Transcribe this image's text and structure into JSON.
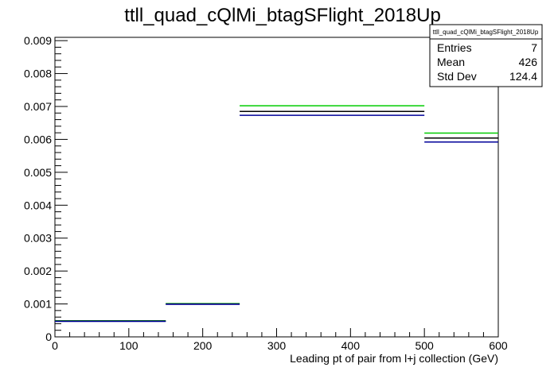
{
  "chart_data": {
    "type": "step",
    "title": "ttll_quad_cQlMi_btagSFlight_2018Up",
    "xlabel": "Leading pt of pair from l+j collection (GeV)",
    "ylabel": "",
    "xlim": [
      0,
      600
    ],
    "ylim": [
      0,
      0.0091
    ],
    "x_ticks": [
      0,
      100,
      200,
      300,
      400,
      500,
      600
    ],
    "x_tick_labels": [
      "0",
      "100",
      "200",
      "300",
      "400",
      "500",
      "600"
    ],
    "y_ticks": [
      0,
      0.001,
      0.002,
      0.003,
      0.004,
      0.005,
      0.006,
      0.007,
      0.008,
      0.009
    ],
    "y_tick_labels": [
      "0",
      "0.001",
      "0.002",
      "0.003",
      "0.004",
      "0.005",
      "0.006",
      "0.007",
      "0.008",
      "0.009"
    ],
    "grid": false,
    "bin_edges": [
      0,
      150,
      250,
      500,
      600
    ],
    "series": [
      {
        "color": "#00cc00",
        "values": [
          0.00049,
          0.00101,
          0.00702,
          0.00619
        ]
      },
      {
        "color": "#000000",
        "values": [
          0.00048,
          0.001,
          0.00685,
          0.00604
        ]
      },
      {
        "color": "#000099",
        "values": [
          0.00047,
          0.00099,
          0.00673,
          0.00592
        ]
      }
    ],
    "stats_box": {
      "name": "ttll_quad_cQlMi_btagSFlight_2018Up",
      "rows": [
        {
          "label": "Entries",
          "value": "7"
        },
        {
          "label": "Mean",
          "value": "426"
        },
        {
          "label": "Std Dev",
          "value": "124.4"
        }
      ]
    }
  }
}
